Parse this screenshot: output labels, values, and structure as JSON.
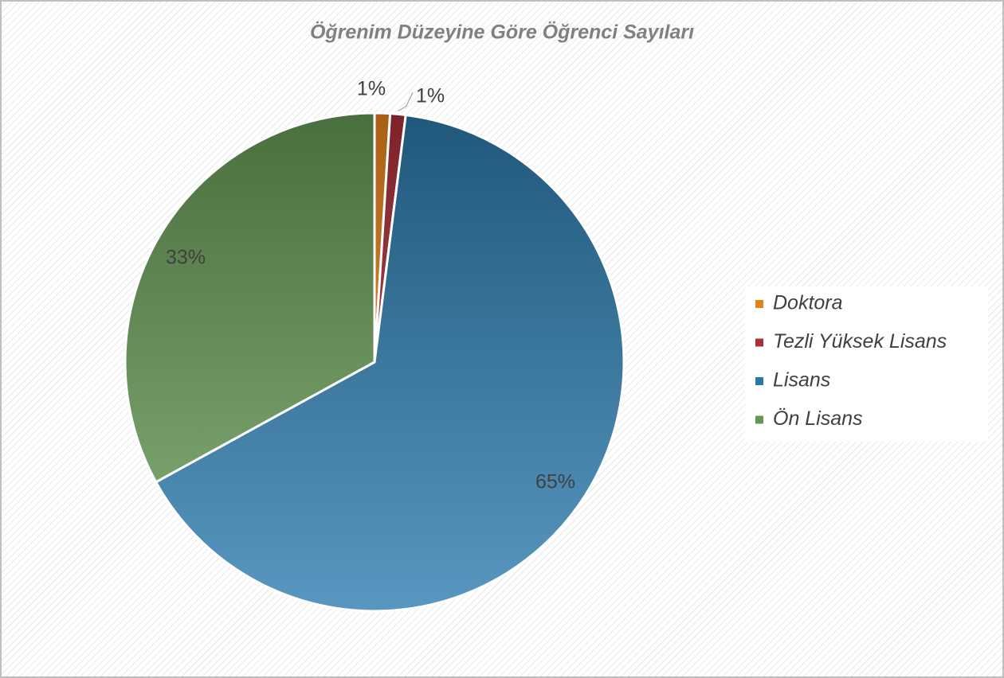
{
  "chart_data": {
    "type": "pie",
    "title": "Öğrenim Düzeyine Göre Öğrenci Sayıları",
    "categories": [
      "Doktora",
      "Tezli Yüksek Lisans",
      "Lisans",
      "Ön Lisans"
    ],
    "values": [
      1,
      1,
      65,
      33
    ],
    "value_labels": [
      "1%",
      "1%",
      "65%",
      "33%"
    ],
    "colors": [
      "#f08a1c",
      "#b3313b",
      "#2e7db0",
      "#6a9e58"
    ],
    "legend": "right"
  }
}
